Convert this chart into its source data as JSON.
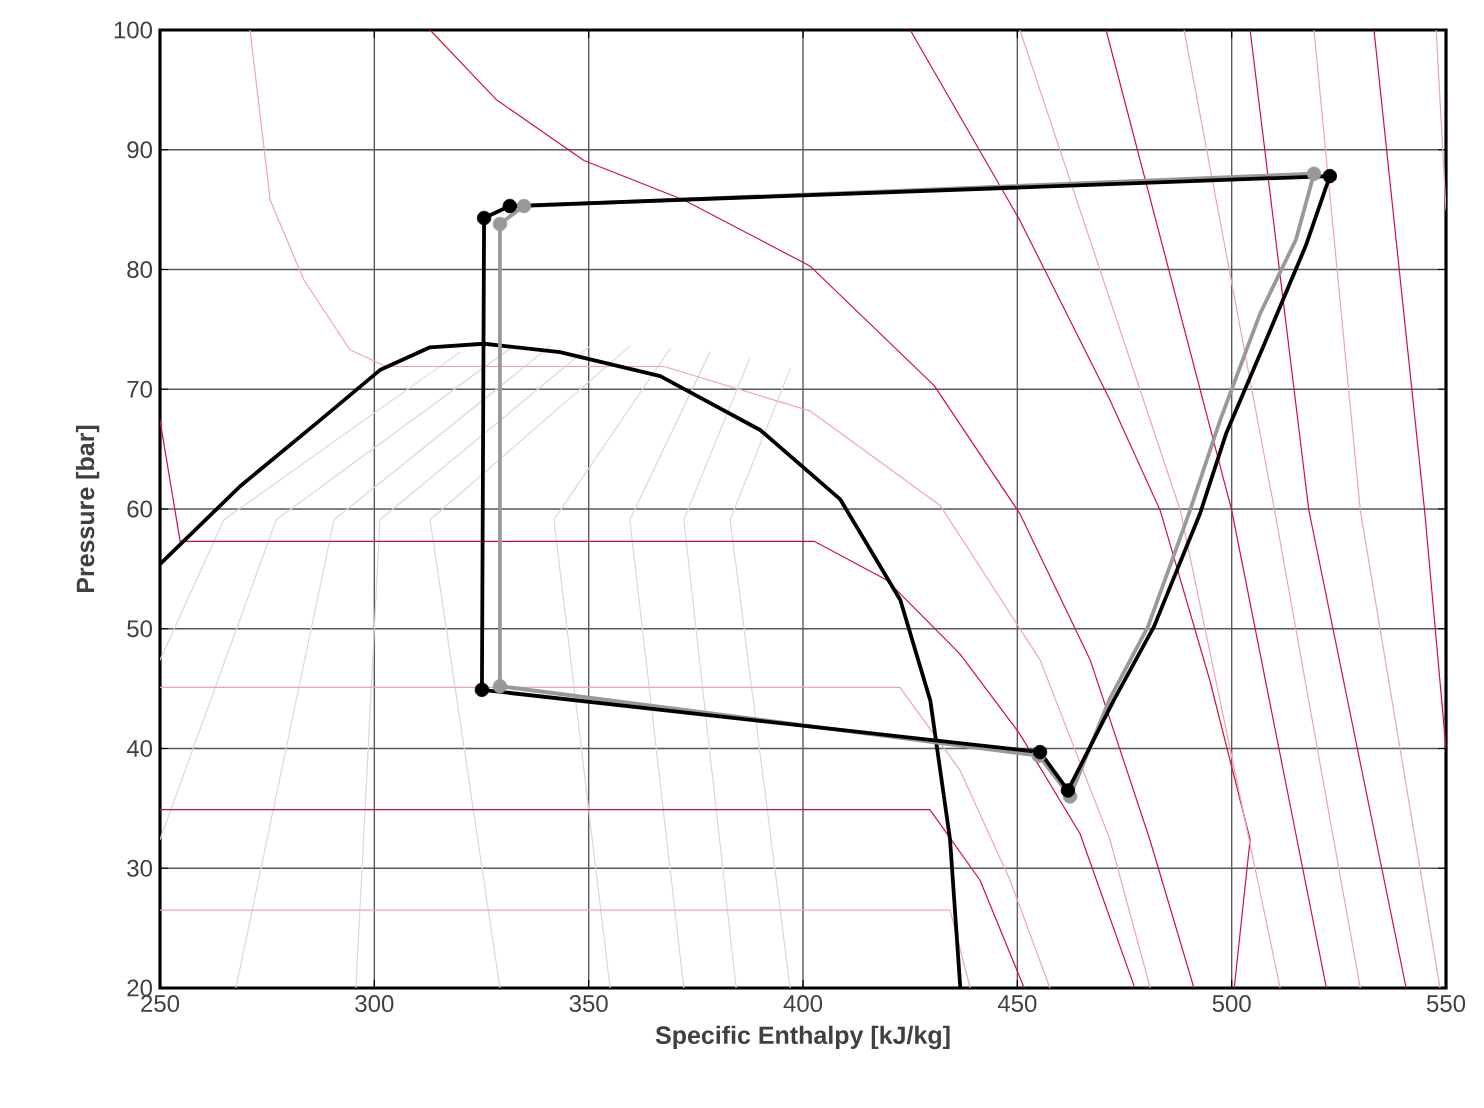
{
  "chart_data": {
    "type": "line",
    "xlabel": "Specific Enthalpy [kJ/kg]",
    "ylabel": "Pressure [bar]",
    "xlim": [
      250,
      550
    ],
    "ylim": [
      20,
      100
    ],
    "xticks": [
      250,
      300,
      350,
      400,
      450,
      500,
      550
    ],
    "yticks": [
      20,
      30,
      40,
      50,
      60,
      70,
      80,
      90,
      100
    ],
    "grid": true,
    "series": [
      {
        "color": "#d9d9d9",
        "x": [
          320.0,
          264.9,
          250
        ],
        "values": [
          73.1,
          59.1,
          47.4
        ]
      },
      {
        "color": "#d9d9d9",
        "x": [
          331.6,
          277.1,
          250
        ],
        "values": [
          73.4,
          59.1,
          32.4
        ]
      },
      {
        "color": "#d9d9d9",
        "x": [
          341.0,
          290.6,
          267.7
        ],
        "values": [
          73.6,
          59.1,
          20
        ]
      },
      {
        "color": "#d9d9d9",
        "x": [
          350.3,
          301.3,
          295.7
        ],
        "values": [
          73.6,
          59.1,
          20
        ]
      },
      {
        "color": "#d9d9d9",
        "x": [
          359.6,
          313.0,
          329.3
        ],
        "values": [
          73.6,
          59.1,
          20
        ]
      },
      {
        "color": "#d9d9d9",
        "x": [
          369.0,
          341.9,
          355.0
        ],
        "values": [
          73.4,
          59.1,
          20
        ]
      },
      {
        "color": "#d9d9d9",
        "x": [
          378.3,
          359.6,
          372.2
        ],
        "values": [
          73.1,
          59.1,
          20
        ]
      },
      {
        "color": "#d9d9d9",
        "x": [
          387.6,
          372.2,
          384.4
        ],
        "values": [
          72.6,
          59.1,
          20
        ]
      },
      {
        "color": "#d9d9d9",
        "x": [
          397.0,
          383.0,
          397.0
        ],
        "values": [
          71.7,
          59.1,
          20
        ]
      },
      {
        "color": "#f2a3b3",
        "x": [
          271.0,
          275.7,
          283.6,
          294.3,
          302.7,
          367.6,
          401.6,
          432.0,
          455.3,
          471.6,
          481.0
        ],
        "values": [
          100,
          85.8,
          79.1,
          73.3,
          71.9,
          71.9,
          68.2,
          60.3,
          47.4,
          32.4,
          20
        ]
      },
      {
        "color": "#d0103a",
        "x": [
          313.0,
          328.4,
          348.9,
          372.2,
          401.6,
          430.6,
          450.6,
          467.0,
          480.9,
          491.2
        ],
        "values": [
          100,
          94.2,
          89.1,
          85.8,
          80.3,
          70.3,
          59.6,
          47.4,
          32.4,
          20
        ]
      },
      {
        "color": "#d0103a",
        "x": [
          250,
          254.7,
          402.6,
          419.4,
          436.6,
          450.6,
          464.6,
          477.2
        ],
        "values": [
          67.4,
          57.3,
          57.3,
          54.1,
          47.9,
          41.2,
          32.9,
          20.2
        ]
      },
      {
        "color": "#f2a3b3",
        "x": [
          250,
          422.6,
          436.6,
          448.3,
          457.6
        ],
        "values": [
          45.1,
          45.1,
          38.2,
          29.0,
          20
        ]
      },
      {
        "color": "#d0103a",
        "x": [
          250,
          429.6,
          441.3,
          451.6
        ],
        "values": [
          34.9,
          34.9,
          29.0,
          20
        ]
      },
      {
        "color": "#f2a3b3",
        "x": [
          250,
          434.3,
          439.0
        ],
        "values": [
          26.5,
          26.5,
          20
        ]
      },
      {
        "color": "#d0103a",
        "x": [
          425.0,
          450.6,
          471.6,
          483.3,
          494.9,
          504.3,
          500.6
        ],
        "values": [
          100,
          84.1,
          69.1,
          59.9,
          45.7,
          32.4,
          20
        ]
      },
      {
        "color": "#f2a3b3",
        "x": [
          450.6,
          488.0,
          511.3
        ],
        "values": [
          100,
          59.9,
          20
        ]
      },
      {
        "color": "#d0103a",
        "x": [
          470.7,
          500.0,
          522.1
        ],
        "values": [
          100,
          59.9,
          20
        ]
      },
      {
        "color": "#f2a3b3",
        "x": [
          488.9,
          510.0,
          530.0
        ],
        "values": [
          100,
          59.9,
          20
        ]
      },
      {
        "color": "#d0103a",
        "x": [
          504.3,
          518.0,
          540.7
        ],
        "values": [
          100,
          59.9,
          20
        ]
      },
      {
        "color": "#f2a3b3",
        "x": [
          519.2,
          530.0,
          548.6
        ],
        "values": [
          100,
          59.9,
          20
        ]
      },
      {
        "color": "#d0103a",
        "x": [
          533.2,
          545.0,
          550
        ],
        "values": [
          100,
          59.9,
          40
        ]
      },
      {
        "color": "#f2a3b3",
        "x": [
          547.7,
          550
        ],
        "values": [
          100,
          85
        ]
      },
      {
        "color": "#000000",
        "x": [
          250,
          268.7,
          287.3,
          301.3,
          313,
          325.6,
          343.3,
          366.7,
          390,
          408.7,
          422.7,
          429.7,
          434.3,
          436.7
        ],
        "values": [
          55.4,
          61.9,
          67.4,
          71.6,
          73.5,
          73.8,
          73.1,
          71.1,
          66.6,
          60.8,
          52.4,
          44,
          32.4,
          20
        ]
      },
      {
        "color": "#999999",
        "x": [
          329.3,
          329.3,
          334.9,
          519.2,
          515.0,
          506.6,
          497.3,
          490.0,
          480.5,
          471.5,
          462.3,
          455.0
        ],
        "values": [
          45.2,
          83.8,
          85.3,
          88.0,
          82.5,
          76.3,
          67.4,
          59.6,
          50.2,
          44.1,
          36.0,
          39.4
        ]
      },
      {
        "color": "#999999",
        "x": [
          455.0,
          329.3
        ],
        "values": [
          39.4,
          45.2
        ]
      },
      {
        "type": "scatter",
        "marker": "circle",
        "color": "#999999",
        "x": [
          329.3,
          334.9,
          519.2,
          462.3,
          455.0,
          329.3
        ],
        "values": [
          83.8,
          85.3,
          88.0,
          36.0,
          39.4,
          45.2
        ]
      },
      {
        "color": "#000000",
        "x": [
          325.1,
          325.6,
          331.6,
          522.9,
          517.3,
          508.0,
          498.7,
          492.6,
          481.9,
          472.6,
          461.8,
          455.3
        ],
        "values": [
          44.9,
          84.3,
          85.3,
          87.8,
          82.0,
          74.1,
          66.3,
          59.6,
          50.2,
          44.1,
          36.5,
          39.7
        ]
      },
      {
        "color": "#000000",
        "x": [
          455.3,
          325.1
        ],
        "values": [
          39.7,
          44.9
        ]
      },
      {
        "type": "scatter",
        "marker": "circle",
        "color": "#000000",
        "x": [
          325.6,
          331.6,
          522.9,
          461.8,
          455.3,
          325.1
        ],
        "values": [
          84.3,
          85.3,
          87.8,
          36.5,
          39.7,
          44.9
        ]
      }
    ]
  }
}
